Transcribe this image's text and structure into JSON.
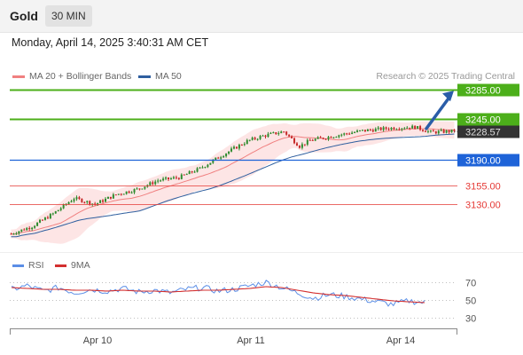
{
  "header": {
    "symbol": "Gold",
    "interval": "30 MIN",
    "datetime": "Monday, April 14, 2025 3:40:31 AM CET"
  },
  "legend": {
    "bb_label": "MA 20 + Bollinger Bands",
    "ma50_label": "MA 50",
    "credit": "Research © 2025 Trading Central"
  },
  "rsi_legend": {
    "rsi_label": "RSI",
    "ma_label": "9MA"
  },
  "colors": {
    "up": "#2e8b2e",
    "down": "#c62828",
    "ma20": "#f08080",
    "band_fill": "#fde0e0",
    "ma50": "#2f5f9f",
    "resistance": "#4caf1a",
    "pivot": "#1e63d8",
    "support": "#e53935",
    "price_tag": "#333333",
    "rsi": "#5b8ee6",
    "rsi_ma": "#d32f2f",
    "arrow": "#2a5da8"
  },
  "chart_data": [
    {
      "type": "candlestick",
      "title": "Gold 30 MIN",
      "x_labels": [
        "Apr 10",
        "Apr 11",
        "Apr 14"
      ],
      "ylim": [
        3075,
        3300
      ],
      "approximate_close_path": [
        {
          "step": 0,
          "close": 3090
        },
        {
          "step": 8,
          "close": 3100
        },
        {
          "step": 16,
          "close": 3117
        },
        {
          "step": 24,
          "close": 3138
        },
        {
          "step": 32,
          "close": 3130
        },
        {
          "step": 40,
          "close": 3143
        },
        {
          "step": 48,
          "close": 3150
        },
        {
          "step": 56,
          "close": 3162
        },
        {
          "step": 64,
          "close": 3166
        },
        {
          "step": 72,
          "close": 3178
        },
        {
          "step": 80,
          "close": 3195
        },
        {
          "step": 90,
          "close": 3215
        },
        {
          "step": 96,
          "close": 3222
        },
        {
          "step": 104,
          "close": 3228
        },
        {
          "step": 110,
          "close": 3208
        },
        {
          "step": 114,
          "close": 3216
        },
        {
          "step": 126,
          "close": 3224
        },
        {
          "step": 134,
          "close": 3229
        },
        {
          "step": 146,
          "close": 3233
        },
        {
          "step": 154,
          "close": 3234
        },
        {
          "step": 160,
          "close": 3227
        },
        {
          "step": 169,
          "close": 3228.57
        }
      ],
      "levels": [
        {
          "label": "3285.00",
          "value": 3285,
          "kind": "resistance"
        },
        {
          "label": "3245.00",
          "value": 3245,
          "kind": "resistance"
        },
        {
          "label": "3228.57",
          "value": 3228.57,
          "kind": "last_price"
        },
        {
          "label": "3190.00",
          "value": 3190,
          "kind": "pivot"
        },
        {
          "label": "3155.00",
          "value": 3155,
          "kind": "support"
        },
        {
          "label": "3130.00",
          "value": 3130,
          "kind": "support"
        }
      ],
      "series": [
        {
          "name": "MA 20 + Bollinger Bands"
        },
        {
          "name": "MA 50"
        }
      ],
      "annotations": [
        "upward arrow from last price toward 3285.00"
      ]
    },
    {
      "type": "line",
      "series": [
        {
          "name": "RSI",
          "approximate_values": [
            62,
            66,
            60,
            64,
            58,
            62,
            60,
            63,
            59,
            61,
            58,
            62,
            64,
            60,
            62,
            66,
            70,
            64,
            58,
            52,
            56,
            54,
            51,
            48,
            45,
            49,
            47
          ]
        },
        {
          "name": "9MA",
          "approximate_values": [
            64,
            63,
            62,
            62,
            61,
            61,
            60,
            61,
            60,
            60,
            59,
            60,
            61,
            61,
            62,
            63,
            65,
            64,
            61,
            58,
            56,
            55,
            53,
            51,
            49,
            48,
            47
          ]
        }
      ],
      "ylim": [
        20,
        80
      ],
      "y_ticks": [
        "70",
        "50",
        "30"
      ]
    }
  ]
}
